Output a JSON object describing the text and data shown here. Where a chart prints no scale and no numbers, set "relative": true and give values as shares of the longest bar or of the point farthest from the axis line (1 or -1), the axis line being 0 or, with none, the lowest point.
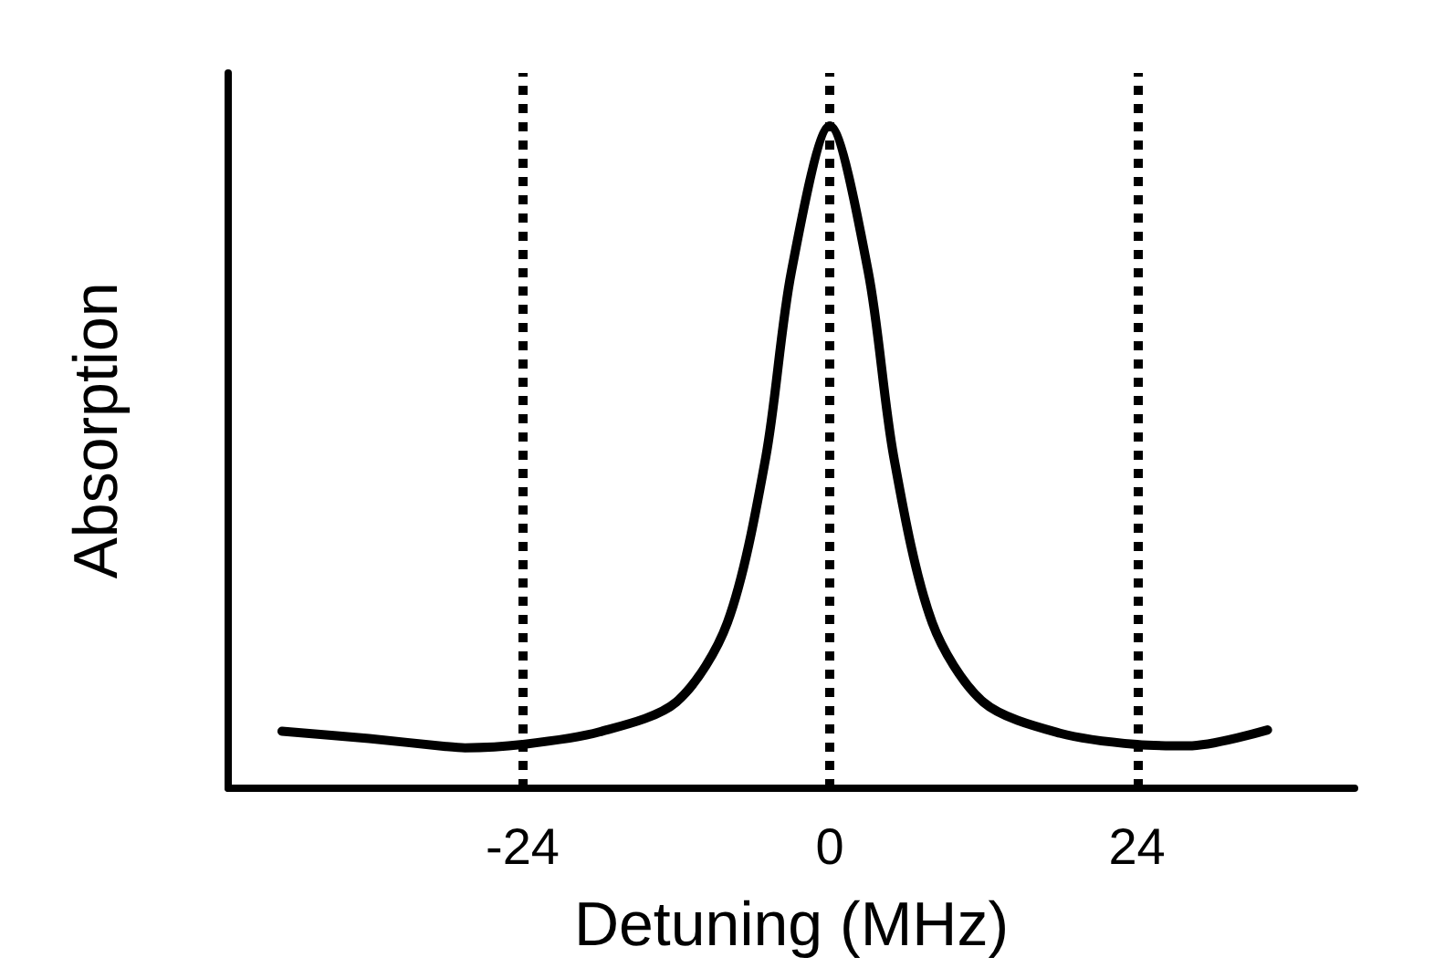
{
  "chart_data": {
    "type": "line",
    "xlabel": "Detuning (MHz)",
    "ylabel": "Absorption",
    "relative": true,
    "x": [
      -42.8,
      -36,
      -30,
      -28.5,
      -24,
      -18,
      -12,
      -8,
      -5,
      -3,
      0,
      3,
      5,
      8,
      12,
      18,
      24,
      28,
      34.2
    ],
    "values": [
      0.086,
      0.075,
      0.063,
      0.061,
      0.066,
      0.085,
      0.13,
      0.25,
      0.5,
      0.78,
      1,
      0.78,
      0.5,
      0.25,
      0.13,
      0.083,
      0.066,
      0.064,
      0.088
    ],
    "color": "#000000",
    "marker": "none",
    "line_style": "solid",
    "grid": false,
    "tick_labels": "x",
    "xlim": [
      -47,
      41
    ],
    "xticks": [
      -24,
      0,
      24
    ],
    "ref_lines": [
      {
        "axis": "x",
        "value": -24,
        "color": "#000000",
        "line_style": "dotted"
      },
      {
        "axis": "x",
        "value": 0,
        "color": "#000000",
        "line_style": "dotted"
      },
      {
        "axis": "x",
        "value": 24,
        "color": "#000000",
        "line_style": "dotted"
      }
    ]
  }
}
